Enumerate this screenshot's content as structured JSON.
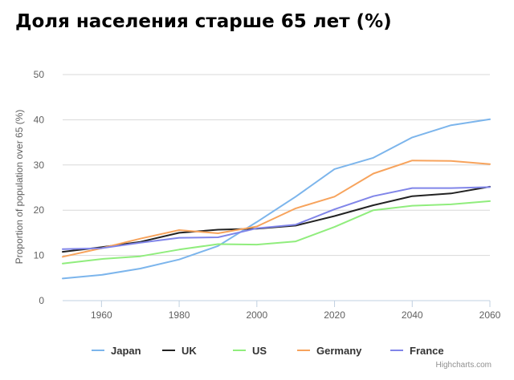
{
  "chart_data": {
    "type": "line",
    "title": "Доля населения старше 65 лет (%)",
    "xlabel": "",
    "ylabel": "Proportion of population over 65 (%)",
    "x": [
      1950,
      1960,
      1970,
      1980,
      1990,
      2000,
      2010,
      2020,
      2030,
      2040,
      2050,
      2060
    ],
    "x_ticks": [
      1960,
      1980,
      2000,
      2020,
      2040,
      2060
    ],
    "y_ticks": [
      0,
      10,
      20,
      30,
      40,
      50
    ],
    "xlim": [
      1950,
      2060
    ],
    "ylim": [
      0,
      50
    ],
    "grid": "horizontal",
    "legend": "bottom",
    "credit": "Highcharts.com",
    "series": [
      {
        "name": "Japan",
        "color": "#7cb5ec",
        "values": [
          4.9,
          5.7,
          7.1,
          9.1,
          12.1,
          17.4,
          23.0,
          29.1,
          31.6,
          36.1,
          38.8,
          40.1
        ]
      },
      {
        "name": "UK",
        "color": "#222222",
        "values": [
          10.8,
          11.8,
          13.0,
          15.0,
          15.7,
          15.9,
          16.6,
          18.7,
          21.1,
          23.1,
          23.7,
          25.2
        ]
      },
      {
        "name": "US",
        "color": "#90ed7d",
        "values": [
          8.2,
          9.2,
          9.8,
          11.3,
          12.5,
          12.4,
          13.1,
          16.3,
          20.0,
          21.0,
          21.3,
          22.0
        ]
      },
      {
        "name": "Germany",
        "color": "#f7a35c",
        "values": [
          9.7,
          11.6,
          13.7,
          15.6,
          14.9,
          16.4,
          20.4,
          23.0,
          28.1,
          31.0,
          30.9,
          30.2
        ]
      },
      {
        "name": "France",
        "color": "#8085e9",
        "values": [
          11.4,
          11.6,
          12.8,
          13.9,
          14.0,
          16.0,
          16.8,
          20.2,
          23.1,
          24.9,
          24.9,
          25.1
        ]
      }
    ]
  }
}
